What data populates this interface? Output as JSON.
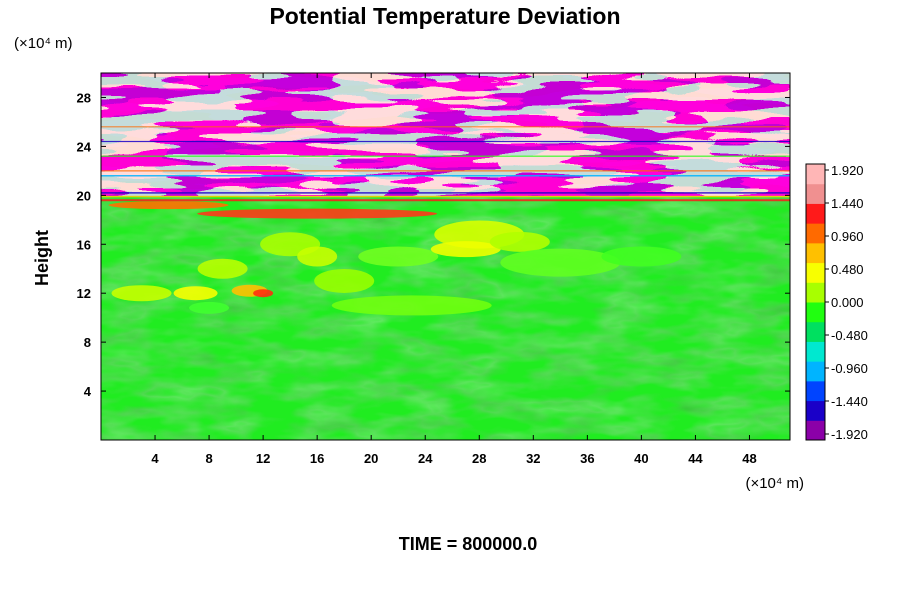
{
  "chart_data": {
    "type": "heatmap",
    "title": "Potential Temperature Deviation",
    "ylabel": "Height",
    "y_unit": "(×10⁴ m)",
    "x_unit": "(×10⁴ m)",
    "footer": "TIME = 800000.0",
    "xlim": [
      0,
      51
    ],
    "ylim": [
      0,
      30
    ],
    "x_ticks": [
      4,
      8,
      12,
      16,
      20,
      24,
      28,
      32,
      36,
      40,
      44,
      48
    ],
    "y_ticks": [
      4,
      8,
      12,
      16,
      20,
      24,
      28
    ],
    "colorbar": {
      "ticks": [
        "1.920",
        "1.440",
        "0.960",
        "0.480",
        "0.000",
        "-0.480",
        "-0.960",
        "-1.440",
        "-1.920"
      ],
      "range": [
        -1.92,
        1.92
      ],
      "colors": [
        "#8b00a8",
        "#1a00c8",
        "#0044ff",
        "#00b4ff",
        "#00e8d0",
        "#00e060",
        "#20ff10",
        "#a8ff00",
        "#f8ff00",
        "#ffc000",
        "#ff6a00",
        "#ff1a1a",
        "#f09090",
        "#ffb6b6"
      ]
    },
    "field_description_values": {
      "below_tropopause_typical": 0.0,
      "tropopause_height": 19.8,
      "upper_layer_alternating_values": [
        1.92,
        -1.92
      ]
    }
  }
}
